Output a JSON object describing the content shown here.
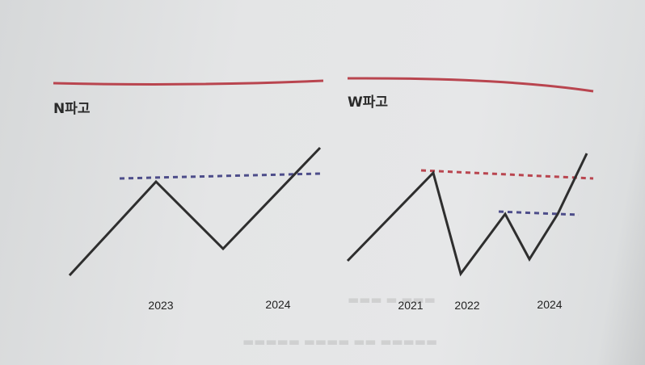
{
  "colors": {
    "accent_red": "#b9454f",
    "accent_blue": "#4d4d8a",
    "line": "#2e2e2e"
  },
  "panels": [
    {
      "title": "N파고",
      "years": [
        "2023",
        "2024"
      ]
    },
    {
      "title": "W파고",
      "years": [
        "2021",
        "2022",
        "2024"
      ]
    }
  ]
}
